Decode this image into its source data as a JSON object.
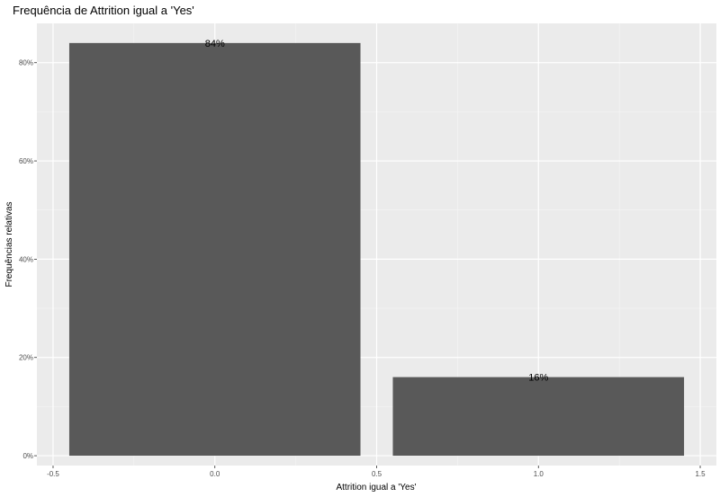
{
  "chart_data": {
    "type": "bar",
    "title": "Frequência de Attrition igual a 'Yes'",
    "xlabel": "Attrition igual a 'Yes'",
    "ylabel": "Frequências relativas",
    "x": [
      0,
      1
    ],
    "values": [
      0.84,
      0.16
    ],
    "data_labels": [
      "84%",
      "16%"
    ],
    "bar_width": 0.9,
    "xlim": [
      -0.55,
      1.55
    ],
    "ylim": [
      -0.02,
      0.88
    ],
    "x_ticks": [
      -0.5,
      0.0,
      0.5,
      1.0,
      1.5
    ],
    "x_tick_labels": [
      "-0.5",
      "0.0",
      "0.5",
      "1.0",
      "1.5"
    ],
    "y_ticks": [
      0,
      0.2,
      0.4,
      0.6,
      0.8
    ],
    "y_tick_labels": [
      "0%",
      "20%",
      "40%",
      "60%",
      "80%"
    ],
    "grid": true,
    "legend": "none",
    "colors": {
      "bar": "#595959",
      "panel": "#ebebeb",
      "grid_major": "#ffffff",
      "grid_minor": "#f5f5f5",
      "tick": "#333333"
    }
  }
}
